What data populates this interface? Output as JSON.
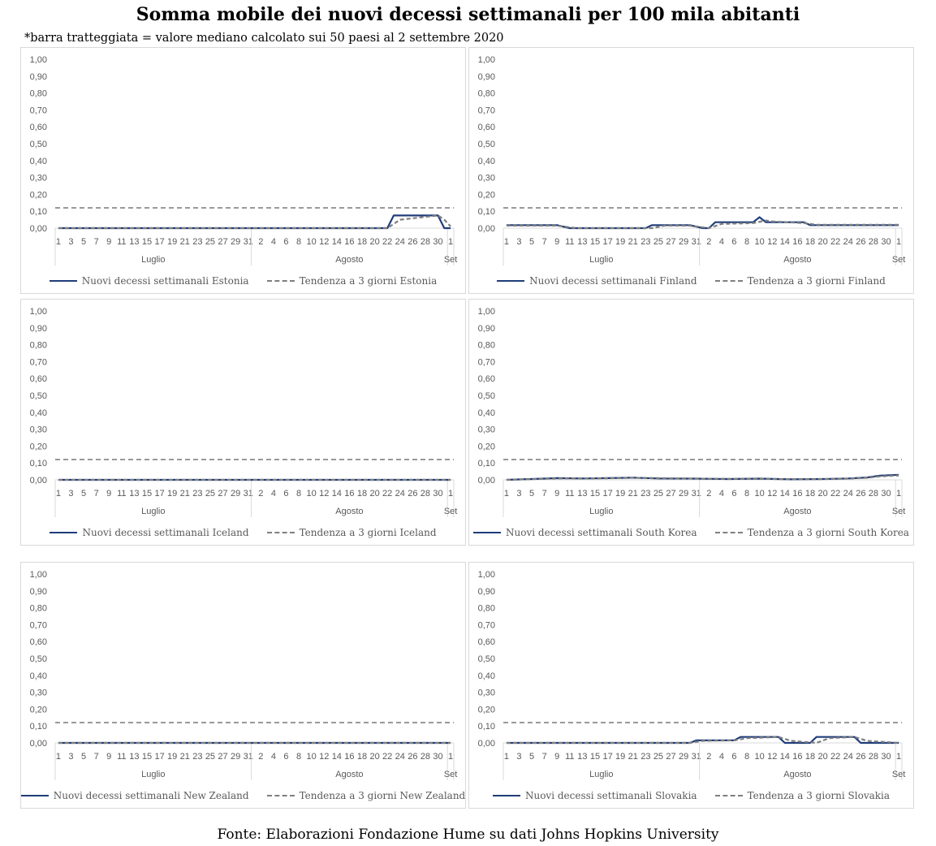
{
  "header": {
    "title": "Somma mobile dei nuovi decessi settimanali per 100 mila abitanti",
    "note": "*barra tratteggiata = valore mediano calcolato sui 50 paesi al 2 settembre 2020",
    "source": "Fonte: Elaborazioni Fondazione Hume su dati Johns Hopkins University"
  },
  "colors": {
    "series": "#1f3d7a",
    "trend": "#7f7f7f",
    "median": "#999999",
    "axis": "#d9d9d9"
  },
  "chart_data": [
    {
      "type": "line",
      "country": "Estonia",
      "legend": [
        "Nuovi decessi settimanali Estonia",
        "Tendenza a 3 giorni Estonia"
      ],
      "x_start": "2020-07-01",
      "x_end": "2020-09-01",
      "ylim": [
        0,
        1
      ],
      "yticks": [
        "0,00",
        "0,10",
        "0,20",
        "0,30",
        "0,40",
        "0,50",
        "0,60",
        "0,70",
        "0,80",
        "0,90",
        "1,00"
      ],
      "xtick_labels": [
        "1",
        "3",
        "5",
        "7",
        "9",
        "11",
        "13",
        "15",
        "17",
        "19",
        "21",
        "23",
        "25",
        "27",
        "29",
        "31",
        "2",
        "4",
        "6",
        "8",
        "10",
        "12",
        "14",
        "16",
        "18",
        "20",
        "22",
        "24",
        "26",
        "28",
        "30",
        "1"
      ],
      "month_labels": [
        "Luglio",
        "Agosto",
        "Set"
      ],
      "median": 0.12,
      "series": {
        "x": [
          "2020-07-01",
          "2020-07-31",
          "2020-08-10",
          "2020-08-22",
          "2020-08-23",
          "2020-08-30",
          "2020-08-31",
          "2020-09-01"
        ],
        "y": [
          0,
          0,
          0,
          0,
          0.075,
          0.075,
          0,
          0
        ]
      },
      "trend": {
        "x": [
          "2020-07-01",
          "2020-07-31",
          "2020-08-10",
          "2020-08-22",
          "2020-08-24",
          "2020-08-30",
          "2020-08-31",
          "2020-09-01"
        ],
        "y": [
          0,
          0,
          0,
          0,
          0.05,
          0.075,
          0.05,
          0.01
        ]
      }
    },
    {
      "type": "line",
      "country": "Finland",
      "legend": [
        "Nuovi decessi settimanali Finland",
        "Tendenza a 3 giorni Finland"
      ],
      "x_start": "2020-07-01",
      "x_end": "2020-09-01",
      "ylim": [
        0,
        1
      ],
      "yticks": [
        "0,00",
        "0,10",
        "0,20",
        "0,30",
        "0,40",
        "0,50",
        "0,60",
        "0,70",
        "0,80",
        "0,90",
        "1,00"
      ],
      "xtick_labels": [
        "1",
        "3",
        "5",
        "7",
        "9",
        "11",
        "13",
        "15",
        "17",
        "19",
        "21",
        "23",
        "25",
        "27",
        "29",
        "31",
        "2",
        "4",
        "6",
        "8",
        "10",
        "12",
        "14",
        "16",
        "18",
        "20",
        "22",
        "24",
        "26",
        "28",
        "30",
        "1"
      ],
      "month_labels": [
        "Luglio",
        "Agosto",
        "Set"
      ],
      "median": 0.12,
      "series": {
        "x": [
          "2020-07-01",
          "2020-07-09",
          "2020-07-11",
          "2020-07-23",
          "2020-07-24",
          "2020-07-30",
          "2020-08-01",
          "2020-08-02",
          "2020-08-03",
          "2020-08-09",
          "2020-08-10",
          "2020-08-11",
          "2020-08-17",
          "2020-08-18",
          "2020-09-01"
        ],
        "y": [
          0.018,
          0.018,
          0,
          0,
          0.018,
          0.018,
          0,
          0,
          0.035,
          0.035,
          0.065,
          0.035,
          0.035,
          0.018,
          0.018
        ]
      },
      "trend": {
        "x": [
          "2020-07-01",
          "2020-07-09",
          "2020-07-12",
          "2020-07-24",
          "2020-07-26",
          "2020-07-30",
          "2020-08-02",
          "2020-08-04",
          "2020-08-09",
          "2020-08-11",
          "2020-08-12",
          "2020-08-17",
          "2020-08-19",
          "2020-09-01"
        ],
        "y": [
          0.015,
          0.015,
          0,
          0,
          0.015,
          0.015,
          0,
          0.025,
          0.03,
          0.045,
          0.04,
          0.03,
          0.02,
          0.02
        ]
      }
    },
    {
      "type": "line",
      "country": "Iceland",
      "legend": [
        "Nuovi decessi settimanali Iceland",
        "Tendenza a 3 giorni Iceland"
      ],
      "x_start": "2020-07-01",
      "x_end": "2020-09-01",
      "ylim": [
        0,
        1
      ],
      "yticks": [
        "0,00",
        "0,10",
        "0,20",
        "0,30",
        "0,40",
        "0,50",
        "0,60",
        "0,70",
        "0,80",
        "0,90",
        "1,00"
      ],
      "xtick_labels": [
        "1",
        "3",
        "5",
        "7",
        "9",
        "11",
        "13",
        "15",
        "17",
        "19",
        "21",
        "23",
        "25",
        "27",
        "29",
        "31",
        "2",
        "4",
        "6",
        "8",
        "10",
        "12",
        "14",
        "16",
        "18",
        "20",
        "22",
        "24",
        "26",
        "28",
        "30",
        "1"
      ],
      "month_labels": [
        "Luglio",
        "Agosto",
        "Set"
      ],
      "median": 0.12,
      "series": {
        "x": [
          "2020-07-01",
          "2020-09-01"
        ],
        "y": [
          0,
          0
        ]
      },
      "trend": {
        "x": [
          "2020-07-01",
          "2020-09-01"
        ],
        "y": [
          0,
          0
        ]
      }
    },
    {
      "type": "line",
      "country": "South Korea",
      "legend": [
        "Nuovi decessi settimanali South Korea",
        "Tendenza a 3 giorni South Korea"
      ],
      "x_start": "2020-07-01",
      "x_end": "2020-09-01",
      "ylim": [
        0,
        1
      ],
      "yticks": [
        "0,00",
        "0,10",
        "0,20",
        "0,30",
        "0,40",
        "0,50",
        "0,60",
        "0,70",
        "0,80",
        "0,90",
        "1,00"
      ],
      "xtick_labels": [
        "1",
        "3",
        "5",
        "7",
        "9",
        "11",
        "13",
        "15",
        "17",
        "19",
        "21",
        "23",
        "25",
        "27",
        "29",
        "31",
        "2",
        "4",
        "6",
        "8",
        "10",
        "12",
        "14",
        "16",
        "18",
        "20",
        "22",
        "24",
        "26",
        "28",
        "30",
        "1"
      ],
      "month_labels": [
        "Luglio",
        "Agosto",
        "Set"
      ],
      "median": 0.12,
      "series": {
        "x": [
          "2020-07-01",
          "2020-07-05",
          "2020-07-09",
          "2020-07-13",
          "2020-07-17",
          "2020-07-21",
          "2020-07-25",
          "2020-07-31",
          "2020-08-05",
          "2020-08-10",
          "2020-08-15",
          "2020-08-20",
          "2020-08-24",
          "2020-08-27",
          "2020-08-29",
          "2020-09-01"
        ],
        "y": [
          0,
          0.005,
          0.01,
          0.008,
          0.01,
          0.013,
          0.008,
          0.007,
          0.005,
          0.007,
          0.003,
          0.005,
          0.008,
          0.014,
          0.025,
          0.03
        ]
      },
      "trend": {
        "x": [
          "2020-07-01",
          "2020-07-05",
          "2020-07-09",
          "2020-07-13",
          "2020-07-17",
          "2020-07-21",
          "2020-07-25",
          "2020-07-31",
          "2020-08-05",
          "2020-08-10",
          "2020-08-15",
          "2020-08-20",
          "2020-08-24",
          "2020-08-27",
          "2020-08-29",
          "2020-09-01"
        ],
        "y": [
          0,
          0.004,
          0.008,
          0.009,
          0.009,
          0.012,
          0.01,
          0.007,
          0.006,
          0.006,
          0.004,
          0.004,
          0.007,
          0.012,
          0.02,
          0.026
        ]
      }
    },
    {
      "type": "line",
      "country": "New Zealand",
      "legend": [
        "Nuovi decessi settimanali New Zealand",
        "Tendenza a 3 giorni New Zealand"
      ],
      "x_start": "2020-07-01",
      "x_end": "2020-09-01",
      "ylim": [
        0,
        1
      ],
      "yticks": [
        "0,00",
        "0,10",
        "0,20",
        "0,30",
        "0,40",
        "0,50",
        "0,60",
        "0,70",
        "0,80",
        "0,90",
        "1,00"
      ],
      "xtick_labels": [
        "1",
        "3",
        "5",
        "7",
        "9",
        "11",
        "13",
        "15",
        "17",
        "19",
        "21",
        "23",
        "25",
        "27",
        "29",
        "31",
        "2",
        "4",
        "6",
        "8",
        "10",
        "12",
        "14",
        "16",
        "18",
        "20",
        "22",
        "24",
        "26",
        "28",
        "30",
        "1"
      ],
      "month_labels": [
        "Luglio",
        "Agosto",
        "Set"
      ],
      "median": 0.12,
      "series": {
        "x": [
          "2020-07-01",
          "2020-09-01"
        ],
        "y": [
          0,
          0
        ]
      },
      "trend": {
        "x": [
          "2020-07-01",
          "2020-09-01"
        ],
        "y": [
          0,
          0
        ]
      }
    },
    {
      "type": "line",
      "country": "Slovakia",
      "legend": [
        "Nuovi decessi settimanali Slovakia",
        "Tendenza a 3 giorni Slovakia"
      ],
      "x_start": "2020-07-01",
      "x_end": "2020-09-01",
      "ylim": [
        0,
        1
      ],
      "yticks": [
        "0,00",
        "0,10",
        "0,20",
        "0,30",
        "0,40",
        "0,50",
        "0,60",
        "0,70",
        "0,80",
        "0,90",
        "1,00"
      ],
      "xtick_labels": [
        "1",
        "3",
        "5",
        "7",
        "9",
        "11",
        "13",
        "15",
        "17",
        "19",
        "21",
        "23",
        "25",
        "27",
        "29",
        "31",
        "2",
        "4",
        "6",
        "8",
        "10",
        "12",
        "14",
        "16",
        "18",
        "20",
        "22",
        "24",
        "26",
        "28",
        "30",
        "1"
      ],
      "month_labels": [
        "Luglio",
        "Agosto",
        "Set"
      ],
      "median": 0.12,
      "series": {
        "x": [
          "2020-07-01",
          "2020-07-30",
          "2020-07-31",
          "2020-08-06",
          "2020-08-07",
          "2020-08-13",
          "2020-08-14",
          "2020-08-18",
          "2020-08-19",
          "2020-08-25",
          "2020-08-26",
          "2020-09-01"
        ],
        "y": [
          0,
          0,
          0.015,
          0.015,
          0.035,
          0.035,
          0,
          0,
          0.035,
          0.035,
          0,
          0
        ]
      },
      "trend": {
        "x": [
          "2020-07-01",
          "2020-07-30",
          "2020-08-01",
          "2020-08-06",
          "2020-08-08",
          "2020-08-13",
          "2020-08-15",
          "2020-08-19",
          "2020-08-21",
          "2020-08-25",
          "2020-08-27",
          "2020-09-01"
        ],
        "y": [
          0,
          0,
          0.012,
          0.015,
          0.028,
          0.035,
          0.012,
          0,
          0.028,
          0.035,
          0.012,
          0
        ]
      }
    }
  ]
}
